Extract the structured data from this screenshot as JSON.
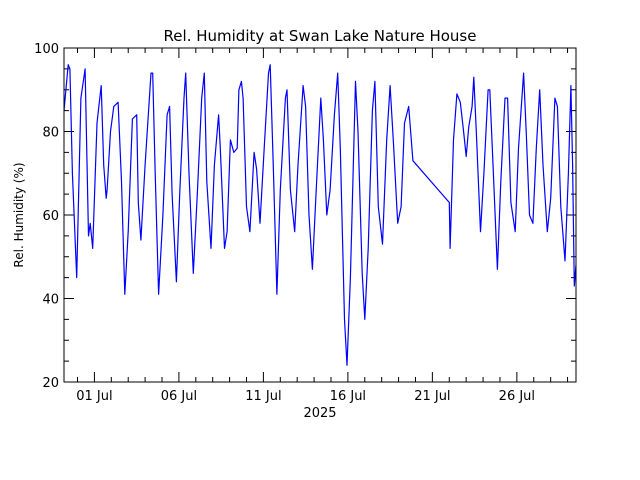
{
  "chart_data": {
    "type": "line",
    "title": "Rel. Humidity at Swan Lake Nature House",
    "xlabel": "2025",
    "ylabel": "Rel. Humidity (%)",
    "xlim": [
      -1.8,
      28.5
    ],
    "ylim": [
      20,
      100
    ],
    "grid": false,
    "legend": "none",
    "colors": {
      "line": "#0000ff",
      "axes": "#000000",
      "background": "#ffffff"
    },
    "x_ticks": [
      {
        "value": 0,
        "label": "01 Jul"
      },
      {
        "value": 5,
        "label": "06 Jul"
      },
      {
        "value": 10,
        "label": "11 Jul"
      },
      {
        "value": 15,
        "label": "16 Jul"
      },
      {
        "value": 20,
        "label": "21 Jul"
      },
      {
        "value": 25,
        "label": "26 Jul"
      }
    ],
    "y_ticks": [
      20,
      40,
      60,
      80,
      100
    ],
    "series": [
      {
        "x_unit": "days since 01 Jul 2025 00:00",
        "points": [
          [
            -1.8,
            85
          ],
          [
            -1.55,
            96
          ],
          [
            -1.45,
            95
          ],
          [
            -1.3,
            70
          ],
          [
            -1.05,
            45
          ],
          [
            -0.8,
            88
          ],
          [
            -0.55,
            95
          ],
          [
            -0.35,
            55
          ],
          [
            -0.25,
            58
          ],
          [
            -0.1,
            52
          ],
          [
            0.15,
            82
          ],
          [
            0.4,
            91
          ],
          [
            0.55,
            72
          ],
          [
            0.7,
            64
          ],
          [
            0.75,
            66
          ],
          [
            0.95,
            80
          ],
          [
            1.15,
            86
          ],
          [
            1.4,
            87
          ],
          [
            1.6,
            68
          ],
          [
            1.8,
            41
          ],
          [
            2.0,
            56
          ],
          [
            2.25,
            83
          ],
          [
            2.5,
            84
          ],
          [
            2.6,
            63
          ],
          [
            2.75,
            54
          ],
          [
            3.0,
            72
          ],
          [
            3.35,
            94
          ],
          [
            3.45,
            94
          ],
          [
            3.6,
            70
          ],
          [
            3.8,
            41
          ],
          [
            4.05,
            60
          ],
          [
            4.3,
            84
          ],
          [
            4.45,
            86
          ],
          [
            4.6,
            65
          ],
          [
            4.85,
            44
          ],
          [
            5.05,
            65
          ],
          [
            5.3,
            88
          ],
          [
            5.4,
            94
          ],
          [
            5.6,
            70
          ],
          [
            5.85,
            46
          ],
          [
            6.1,
            66
          ],
          [
            6.35,
            88
          ],
          [
            6.5,
            94
          ],
          [
            6.65,
            68
          ],
          [
            6.9,
            52
          ],
          [
            7.1,
            72
          ],
          [
            7.35,
            84
          ],
          [
            7.45,
            76
          ],
          [
            7.7,
            52
          ],
          [
            7.85,
            56
          ],
          [
            8.05,
            78
          ],
          [
            8.25,
            75
          ],
          [
            8.45,
            76
          ],
          [
            8.55,
            90
          ],
          [
            8.7,
            92
          ],
          [
            8.8,
            88
          ],
          [
            9.0,
            62
          ],
          [
            9.2,
            56
          ],
          [
            9.45,
            75
          ],
          [
            9.6,
            71
          ],
          [
            9.8,
            58
          ],
          [
            10.05,
            76
          ],
          [
            10.3,
            94
          ],
          [
            10.4,
            96
          ],
          [
            10.6,
            70
          ],
          [
            10.8,
            41
          ],
          [
            11.0,
            66
          ],
          [
            11.3,
            88
          ],
          [
            11.4,
            90
          ],
          [
            11.6,
            66
          ],
          [
            11.85,
            56
          ],
          [
            12.05,
            72
          ],
          [
            12.35,
            91
          ],
          [
            12.5,
            86
          ],
          [
            12.7,
            60
          ],
          [
            12.9,
            47
          ],
          [
            13.1,
            64
          ],
          [
            13.4,
            88
          ],
          [
            13.55,
            78
          ],
          [
            13.75,
            60
          ],
          [
            13.95,
            66
          ],
          [
            14.2,
            84
          ],
          [
            14.4,
            94
          ],
          [
            14.55,
            76
          ],
          [
            14.8,
            35
          ],
          [
            14.95,
            24
          ],
          [
            15.15,
            45
          ],
          [
            15.45,
            92
          ],
          [
            15.6,
            80
          ],
          [
            15.85,
            46
          ],
          [
            16.0,
            35
          ],
          [
            16.2,
            52
          ],
          [
            16.45,
            85
          ],
          [
            16.6,
            92
          ],
          [
            16.8,
            62
          ],
          [
            17.05,
            53
          ],
          [
            17.3,
            78
          ],
          [
            17.5,
            91
          ],
          [
            17.7,
            77
          ],
          [
            17.95,
            58
          ],
          [
            18.15,
            62
          ],
          [
            18.35,
            82
          ],
          [
            18.6,
            86
          ],
          [
            18.85,
            73
          ],
          [
            21.0,
            63
          ],
          [
            21.05,
            52
          ],
          [
            21.25,
            78
          ],
          [
            21.45,
            89
          ],
          [
            21.65,
            87
          ],
          [
            21.85,
            80
          ],
          [
            22.0,
            74
          ],
          [
            22.15,
            81
          ],
          [
            22.35,
            86
          ],
          [
            22.45,
            93
          ],
          [
            22.6,
            80
          ],
          [
            22.85,
            56
          ],
          [
            23.05,
            70
          ],
          [
            23.3,
            90
          ],
          [
            23.4,
            90
          ],
          [
            23.6,
            71
          ],
          [
            23.85,
            47
          ],
          [
            24.05,
            68
          ],
          [
            24.3,
            88
          ],
          [
            24.45,
            88
          ],
          [
            24.65,
            63
          ],
          [
            24.9,
            56
          ],
          [
            25.1,
            76
          ],
          [
            25.4,
            94
          ],
          [
            25.55,
            80
          ],
          [
            25.75,
            60
          ],
          [
            25.95,
            58
          ],
          [
            26.15,
            76
          ],
          [
            26.35,
            90
          ],
          [
            26.55,
            72
          ],
          [
            26.8,
            56
          ],
          [
            27.0,
            64
          ],
          [
            27.25,
            88
          ],
          [
            27.4,
            86
          ],
          [
            27.6,
            62
          ],
          [
            27.85,
            49
          ],
          [
            28.05,
            70
          ],
          [
            28.2,
            91
          ],
          [
            28.3,
            72
          ],
          [
            28.4,
            43
          ],
          [
            28.5,
            48
          ]
        ]
      }
    ]
  }
}
